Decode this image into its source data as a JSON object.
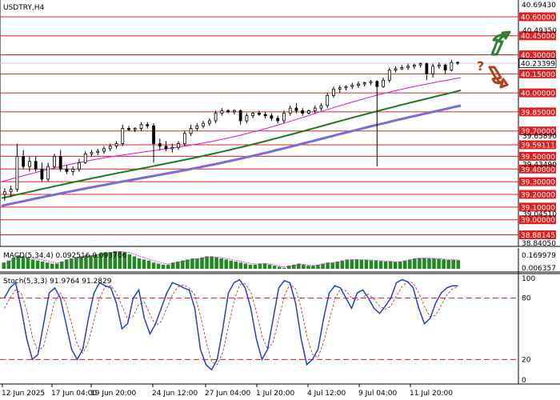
{
  "chart_data": {
    "type": "candlestick",
    "symbol_label": "USDTRY,H4",
    "price_axis": {
      "range": [
        38.8405,
        40.6943
      ],
      "top_label": "40.69430",
      "bottom_label": "38.84050",
      "current_price": 40.23399,
      "current_label": "40.23399",
      "levels": [
        {
          "value": 40.6,
          "label": "40.60000"
        },
        {
          "value": 40.45,
          "label": "40.45000"
        },
        {
          "value": 40.3,
          "label": "40.30000"
        },
        {
          "value": 40.15,
          "label": "40.15000"
        },
        {
          "value": 40.0,
          "label": "40.00000"
        },
        {
          "value": 39.85,
          "label": "39.85000"
        },
        {
          "value": 39.7,
          "label": "39.70000"
        },
        {
          "value": 39.59111,
          "label": "39.59111"
        },
        {
          "value": 39.5,
          "label": "39.50000"
        },
        {
          "value": 39.4,
          "label": "39.40000"
        },
        {
          "value": 39.3,
          "label": "39.30000"
        },
        {
          "value": 39.2,
          "label": "39.20000"
        },
        {
          "value": 39.1,
          "label": "39.10000"
        },
        {
          "value": 39.0,
          "label": "39.00000"
        },
        {
          "value": 38.88145,
          "label": "38.88145"
        }
      ],
      "minor_labels": [
        {
          "value": 40.4935,
          "label": "40.49350"
        },
        {
          "value": 39.6589,
          "label": "39.65890"
        },
        {
          "value": 39.4349,
          "label": "39.43490"
        },
        {
          "value": 39.0451,
          "label": "39.04510"
        }
      ]
    },
    "x_labels": [
      "12 Jun 2025",
      "17 Jun 04:00",
      "19 Jun 20:00",
      "24 Jun 12:00",
      "27 Jun 04:00",
      "1 Jul 20:00",
      "4 Jul 12:00",
      "9 Jul 04:00",
      "11 Jul 20:00"
    ],
    "candles": [
      [
        39.2,
        39.25,
        39.15,
        39.22
      ],
      [
        39.22,
        39.27,
        39.18,
        39.24
      ],
      [
        39.24,
        39.6,
        39.22,
        39.5
      ],
      [
        39.5,
        39.55,
        39.4,
        39.42
      ],
      [
        39.42,
        39.5,
        39.38,
        39.46
      ],
      [
        39.46,
        39.5,
        39.38,
        39.4
      ],
      [
        39.4,
        39.45,
        39.3,
        39.32
      ],
      [
        39.32,
        39.45,
        39.3,
        39.42
      ],
      [
        39.42,
        39.52,
        39.4,
        39.5
      ],
      [
        39.5,
        39.55,
        39.38,
        39.4
      ],
      [
        39.4,
        39.43,
        39.36,
        39.38
      ],
      [
        39.38,
        39.42,
        39.35,
        39.4
      ],
      [
        39.4,
        39.48,
        39.38,
        39.45
      ],
      [
        39.45,
        39.54,
        39.44,
        39.52
      ],
      [
        39.52,
        39.55,
        39.5,
        39.53
      ],
      [
        39.53,
        39.56,
        39.51,
        39.54
      ],
      [
        39.54,
        39.58,
        39.52,
        39.56
      ],
      [
        39.56,
        39.6,
        39.54,
        39.58
      ],
      [
        39.58,
        39.62,
        39.56,
        39.6
      ],
      [
        39.6,
        39.75,
        39.58,
        39.72
      ],
      [
        39.72,
        39.74,
        39.7,
        39.71
      ],
      [
        39.71,
        39.73,
        39.69,
        39.72
      ],
      [
        39.72,
        39.77,
        39.7,
        39.75
      ],
      [
        39.75,
        39.77,
        39.72,
        39.74
      ],
      [
        39.74,
        39.76,
        39.45,
        39.6
      ],
      [
        39.6,
        39.64,
        39.55,
        39.58
      ],
      [
        39.58,
        39.62,
        39.54,
        39.56
      ],
      [
        39.56,
        39.6,
        39.53,
        39.57
      ],
      [
        39.57,
        39.62,
        39.55,
        39.6
      ],
      [
        39.6,
        39.7,
        39.58,
        39.68
      ],
      [
        39.68,
        39.75,
        39.66,
        39.72
      ],
      [
        39.72,
        39.76,
        39.7,
        39.74
      ],
      [
        39.74,
        39.78,
        39.72,
        39.76
      ],
      [
        39.76,
        39.8,
        39.74,
        39.78
      ],
      [
        39.78,
        39.86,
        39.76,
        39.84
      ],
      [
        39.84,
        39.88,
        39.82,
        39.86
      ],
      [
        39.86,
        39.87,
        39.84,
        39.85
      ],
      [
        39.85,
        39.87,
        39.83,
        39.86
      ],
      [
        39.86,
        39.87,
        39.75,
        39.78
      ],
      [
        39.78,
        39.84,
        39.76,
        39.82
      ],
      [
        39.82,
        39.85,
        39.8,
        39.84
      ],
      [
        39.84,
        39.86,
        39.82,
        39.83
      ],
      [
        39.83,
        39.85,
        39.8,
        39.82
      ],
      [
        39.82,
        39.84,
        39.78,
        39.8
      ],
      [
        39.8,
        39.82,
        39.76,
        39.78
      ],
      [
        39.78,
        39.86,
        39.76,
        39.84
      ],
      [
        39.84,
        39.9,
        39.82,
        39.88
      ],
      [
        39.88,
        39.92,
        39.84,
        39.86
      ],
      [
        39.86,
        39.88,
        39.82,
        39.84
      ],
      [
        39.84,
        39.87,
        39.83,
        39.86
      ],
      [
        39.86,
        39.9,
        39.84,
        39.88
      ],
      [
        39.88,
        39.92,
        39.86,
        39.9
      ],
      [
        39.9,
        40.0,
        39.88,
        39.98
      ],
      [
        39.98,
        40.05,
        39.96,
        40.03
      ],
      [
        40.03,
        40.06,
        40.0,
        40.04
      ],
      [
        40.04,
        40.06,
        40.02,
        40.05
      ],
      [
        40.05,
        40.08,
        40.03,
        40.06
      ],
      [
        40.06,
        40.09,
        40.04,
        40.07
      ],
      [
        40.07,
        40.09,
        40.05,
        40.08
      ],
      [
        40.08,
        40.1,
        40.06,
        40.09
      ],
      [
        40.09,
        40.1,
        39.42,
        40.05
      ],
      [
        40.05,
        40.12,
        40.04,
        40.1
      ],
      [
        40.1,
        40.2,
        40.08,
        40.18
      ],
      [
        40.18,
        40.21,
        40.16,
        40.19
      ],
      [
        40.19,
        40.22,
        40.18,
        40.2
      ],
      [
        40.2,
        40.23,
        40.18,
        40.21
      ],
      [
        40.21,
        40.23,
        40.19,
        40.22
      ],
      [
        40.22,
        40.24,
        40.2,
        40.23
      ],
      [
        40.23,
        40.24,
        40.1,
        40.15
      ],
      [
        40.15,
        40.23,
        40.12,
        40.21
      ],
      [
        40.21,
        40.24,
        40.19,
        40.22
      ],
      [
        40.22,
        40.23,
        40.15,
        40.18
      ],
      [
        40.18,
        40.26,
        40.17,
        40.24
      ],
      [
        40.24,
        40.25,
        40.22,
        40.234
      ]
    ],
    "indicators": {
      "ma": [
        {
          "name": "ma-magenta",
          "color": "#d814d8",
          "start": 39.3,
          "end": 40.12
        },
        {
          "name": "ma-green",
          "color": "#1e7a1e",
          "start": 39.17,
          "end": 40.02
        },
        {
          "name": "ma-purple",
          "color": "#7a6cd6",
          "start": 39.11,
          "end": 39.9
        }
      ]
    },
    "macd": {
      "label": "MACD(5,34,4) 0.092516 0.093706",
      "top_label": "0.169979",
      "bottom_label": "0.006357",
      "range": [
        0.0,
        0.17
      ],
      "histogram": [
        0.06,
        0.08,
        0.11,
        0.13,
        0.12,
        0.11,
        0.09,
        0.08,
        0.07,
        0.06,
        0.05,
        0.05,
        0.07,
        0.09,
        0.1,
        0.11,
        0.12,
        0.13,
        0.13,
        0.14,
        0.15,
        0.16,
        0.16,
        0.17,
        0.17,
        0.16,
        0.14,
        0.12,
        0.1,
        0.09,
        0.08,
        0.06,
        0.05,
        0.04,
        0.04,
        0.06,
        0.07,
        0.08,
        0.09,
        0.1,
        0.1,
        0.11,
        0.12,
        0.12,
        0.11,
        0.1,
        0.09,
        0.08,
        0.07,
        0.06,
        0.05,
        0.04,
        0.04,
        0.05,
        0.05,
        0.04,
        0.03,
        0.02,
        0.01,
        0.03,
        0.04,
        0.05,
        0.04,
        0.03,
        0.03,
        0.04,
        0.05,
        0.06,
        0.06,
        0.07,
        0.08,
        0.09,
        0.09,
        0.09,
        0.085,
        0.085,
        0.08,
        0.08,
        0.075,
        0.07,
        0.07,
        0.065,
        0.07,
        0.08,
        0.09,
        0.1,
        0.105,
        0.105,
        0.1,
        0.1,
        0.095,
        0.09,
        0.085,
        0.085,
        0.083
      ],
      "signal": [
        0.05,
        0.065,
        0.085,
        0.105,
        0.115,
        0.115,
        0.105,
        0.095,
        0.085,
        0.075,
        0.065,
        0.058,
        0.062,
        0.075,
        0.088,
        0.1,
        0.11,
        0.12,
        0.125,
        0.132,
        0.14,
        0.148,
        0.154,
        0.16,
        0.164,
        0.163,
        0.155,
        0.14,
        0.122,
        0.106,
        0.094,
        0.078,
        0.066,
        0.054,
        0.046,
        0.05,
        0.06,
        0.07,
        0.08,
        0.088,
        0.094,
        0.1,
        0.108,
        0.114,
        0.113,
        0.108,
        0.1,
        0.092,
        0.082,
        0.072,
        0.062,
        0.052,
        0.046,
        0.048,
        0.05,
        0.046,
        0.038,
        0.028,
        0.018,
        0.024,
        0.032,
        0.042,
        0.042,
        0.036,
        0.032,
        0.036,
        0.044,
        0.052,
        0.058,
        0.065,
        0.073,
        0.082,
        0.087,
        0.089,
        0.088,
        0.087,
        0.084,
        0.082,
        0.079,
        0.075,
        0.072,
        0.068,
        0.069,
        0.075,
        0.083,
        0.092,
        0.099,
        0.103,
        0.102,
        0.101,
        0.098,
        0.094,
        0.089,
        0.087,
        0.085
      ]
    },
    "stoch": {
      "label": "Stoch(5,3,3) 91.9764 91.2829",
      "top_label": "100",
      "bottom_label": "0",
      "levels": [
        {
          "value": 80,
          "label": "80"
        },
        {
          "value": 20,
          "label": "20"
        }
      ],
      "main": [
        80,
        90,
        95,
        70,
        40,
        20,
        25,
        55,
        85,
        90,
        80,
        55,
        30,
        20,
        30,
        60,
        85,
        95,
        92,
        90,
        75,
        50,
        55,
        80,
        88,
        60,
        45,
        55,
        70,
        85,
        95,
        93,
        90,
        88,
        70,
        30,
        15,
        10,
        20,
        50,
        85,
        95,
        98,
        90,
        70,
        40,
        20,
        30,
        60,
        90,
        97,
        95,
        75,
        40,
        15,
        20,
        30,
        60,
        85,
        92,
        90,
        80,
        70,
        85,
        88,
        80,
        70,
        65,
        72,
        80,
        95,
        98,
        96,
        90,
        70,
        55,
        60,
        75,
        85,
        90,
        92,
        92
      ],
      "signal": [
        70,
        80,
        88,
        85,
        68,
        42,
        28,
        33,
        55,
        77,
        85,
        75,
        55,
        35,
        26,
        37,
        58,
        80,
        91,
        92,
        85,
        72,
        60,
        62,
        74,
        76,
        64,
        53,
        57,
        70,
        83,
        91,
        93,
        90,
        83,
        63,
        38,
        18,
        15,
        27,
        52,
        77,
        93,
        94,
        86,
        67,
        43,
        30,
        37,
        60,
        82,
        94,
        89,
        70,
        43,
        25,
        22,
        37,
        58,
        79,
        89,
        87,
        80,
        78,
        81,
        84,
        79,
        72,
        69,
        72,
        82,
        91,
        96,
        95,
        85,
        72,
        62,
        63,
        73,
        83,
        89,
        91
      ]
    },
    "annotations": [
      {
        "type": "arrow-up",
        "color": "#2f7d32",
        "text": ""
      },
      {
        "type": "question-arrow-down",
        "color": "#b0401a",
        "text": "?"
      }
    ]
  }
}
